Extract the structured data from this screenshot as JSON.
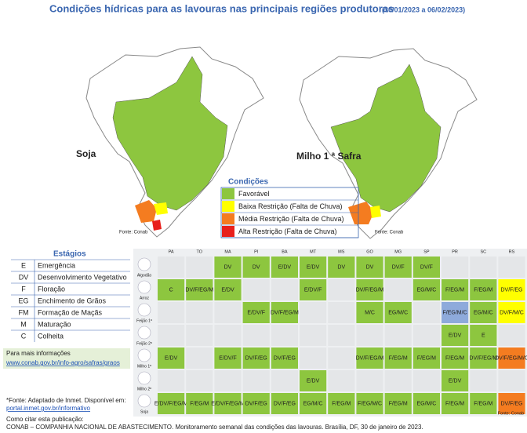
{
  "title": "Condições hídricas para as lavouras nas principais regiões produtoras",
  "period": "(30/01/2023 a 06/02/2023)",
  "maps": [
    {
      "label": "Soja",
      "source": "Fonte: Conab"
    },
    {
      "label": "Milho 1 ª Safra",
      "source": "Fonte: Conab"
    }
  ],
  "conditions": {
    "title": "Condições",
    "items": [
      {
        "label": "Favorável",
        "color": "#8dc63f"
      },
      {
        "label": "Baixa Restrição (Falta de Chuva)",
        "color": "#ffff00"
      },
      {
        "label": "Média Restrição (Falta de Chuva)",
        "color": "#f47c20"
      },
      {
        "label": "Alta Restrição (Falta de Chuva)",
        "color": "#e8201c"
      }
    ]
  },
  "stages": {
    "title": "Estágios",
    "items": [
      {
        "code": "E",
        "name": "Emergência"
      },
      {
        "code": "DV",
        "name": "Desenvolvimento Vegetativo"
      },
      {
        "code": "F",
        "name": "Floração"
      },
      {
        "code": "EG",
        "name": "Enchimento de Grãos"
      },
      {
        "code": "FM",
        "name": "Formação de Maçãs"
      },
      {
        "code": "M",
        "name": "Maturação"
      },
      {
        "code": "C",
        "name": "Colheita"
      }
    ]
  },
  "info": {
    "more": "Para mais informações",
    "link": "www.conab.gov.br/info-agro/safras/graos",
    "source": "*Fonte: Adaptado de Inmet. Disponível em:",
    "source_link": "portal.inmet.gov.br/informativo",
    "cite_title": "Como citar esta publicação:",
    "cite": "CONAB – COMPANHIA NACIONAL DE ABASTECIMENTO. Monitoramento semanal das condições das lavouras. Brasília, DF, 30 de janeiro de 2023."
  },
  "table": {
    "columns": [
      "PA",
      "TO",
      "MA",
      "PI",
      "BA",
      "MT",
      "MS",
      "GO",
      "MG",
      "SP",
      "PR",
      "SC",
      "RS"
    ],
    "source": "Fonte: Conab",
    "rows": [
      {
        "crop": "Algodão",
        "cells": [
          null,
          null,
          {
            "text": "DV",
            "color": "#8dc63f"
          },
          {
            "text": "DV",
            "color": "#8dc63f"
          },
          {
            "text": "E/DV",
            "color": "#8dc63f"
          },
          {
            "text": "E/DV",
            "color": "#8dc63f"
          },
          {
            "text": "DV",
            "color": "#8dc63f"
          },
          {
            "text": "DV",
            "color": "#8dc63f"
          },
          {
            "text": "DV/F",
            "color": "#8dc63f"
          },
          {
            "text": "DV/F",
            "color": "#8dc63f"
          },
          null,
          null,
          null
        ]
      },
      {
        "crop": "Arroz",
        "cells": [
          {
            "text": "C",
            "color": "#8dc63f"
          },
          {
            "text": "DV/F/EG/M",
            "color": "#8dc63f"
          },
          {
            "text": "E/DV",
            "color": "#8dc63f"
          },
          null,
          null,
          {
            "text": "E/DV/F",
            "color": "#8dc63f"
          },
          null,
          {
            "text": "DV/F/EG/M",
            "color": "#8dc63f"
          },
          null,
          {
            "text": "EG/M/C",
            "color": "#8dc63f"
          },
          {
            "text": "F/EG/M",
            "color": "#8dc63f"
          },
          {
            "text": "F/EG/M",
            "color": "#8dc63f"
          },
          {
            "text": "DV/F/EG",
            "color": "#ffff00"
          }
        ]
      },
      {
        "crop": "Feijão 1ª",
        "cells": [
          null,
          null,
          null,
          {
            "text": "E/DV/F",
            "color": "#8dc63f"
          },
          {
            "text": "DV/F/EG/M",
            "color": "#8dc63f"
          },
          null,
          null,
          {
            "text": "M/C",
            "color": "#8dc63f"
          },
          {
            "text": "EG/M/C",
            "color": "#8dc63f"
          },
          null,
          {
            "text": "F/EG/M/C",
            "color": "#8eaadb"
          },
          {
            "text": "EG/M/C",
            "color": "#8dc63f"
          },
          {
            "text": "DV/F/M/C",
            "color": "#ffff00"
          }
        ]
      },
      {
        "crop": "Feijão 2ª",
        "cells": [
          null,
          null,
          null,
          null,
          null,
          null,
          null,
          null,
          null,
          null,
          {
            "text": "E/DV",
            "color": "#8dc63f"
          },
          {
            "text": "E",
            "color": "#8dc63f"
          },
          null
        ]
      },
      {
        "crop": "Milho 1ª",
        "cells": [
          {
            "text": "E/DV",
            "color": "#8dc63f"
          },
          null,
          {
            "text": "E/DV/F",
            "color": "#8dc63f"
          },
          {
            "text": "DV/F/EG",
            "color": "#8dc63f"
          },
          {
            "text": "DV/F/EG",
            "color": "#8dc63f"
          },
          null,
          null,
          {
            "text": "DV/F/EG/M",
            "color": "#8dc63f"
          },
          {
            "text": "F/EG/M",
            "color": "#8dc63f"
          },
          {
            "text": "F/EG/M",
            "color": "#8dc63f"
          },
          {
            "text": "F/EG/M",
            "color": "#8dc63f"
          },
          {
            "text": "DV/F/EG/M",
            "color": "#8dc63f"
          },
          {
            "text": "DV/F/EG/M/C",
            "color": "#f47c20"
          }
        ]
      },
      {
        "crop": "Milho 2ª",
        "cells": [
          null,
          null,
          null,
          null,
          null,
          {
            "text": "E/DV",
            "color": "#8dc63f"
          },
          null,
          null,
          null,
          null,
          {
            "text": "E/DV",
            "color": "#8dc63f"
          },
          null,
          null
        ]
      },
      {
        "crop": "Soja",
        "cells": [
          {
            "text": "E/DV/F/EG/M",
            "color": "#8dc63f"
          },
          {
            "text": "F/EG/M",
            "color": "#8dc63f"
          },
          {
            "text": "E/DV/F/EG/M",
            "color": "#8dc63f"
          },
          {
            "text": "DV/F/EG",
            "color": "#8dc63f"
          },
          {
            "text": "DV/F/EG",
            "color": "#8dc63f"
          },
          {
            "text": "EG/M/C",
            "color": "#8dc63f"
          },
          {
            "text": "F/EG/M",
            "color": "#8dc63f"
          },
          {
            "text": "F/EG/M/C",
            "color": "#8dc63f"
          },
          {
            "text": "F/EG/M",
            "color": "#8dc63f"
          },
          {
            "text": "EG/M/C",
            "color": "#8dc63f"
          },
          {
            "text": "F/EG/M",
            "color": "#8dc63f"
          },
          {
            "text": "F/EG/M",
            "color": "#8dc63f"
          },
          {
            "text": "DV/F/EG",
            "color": "#f47c20"
          }
        ]
      }
    ]
  }
}
